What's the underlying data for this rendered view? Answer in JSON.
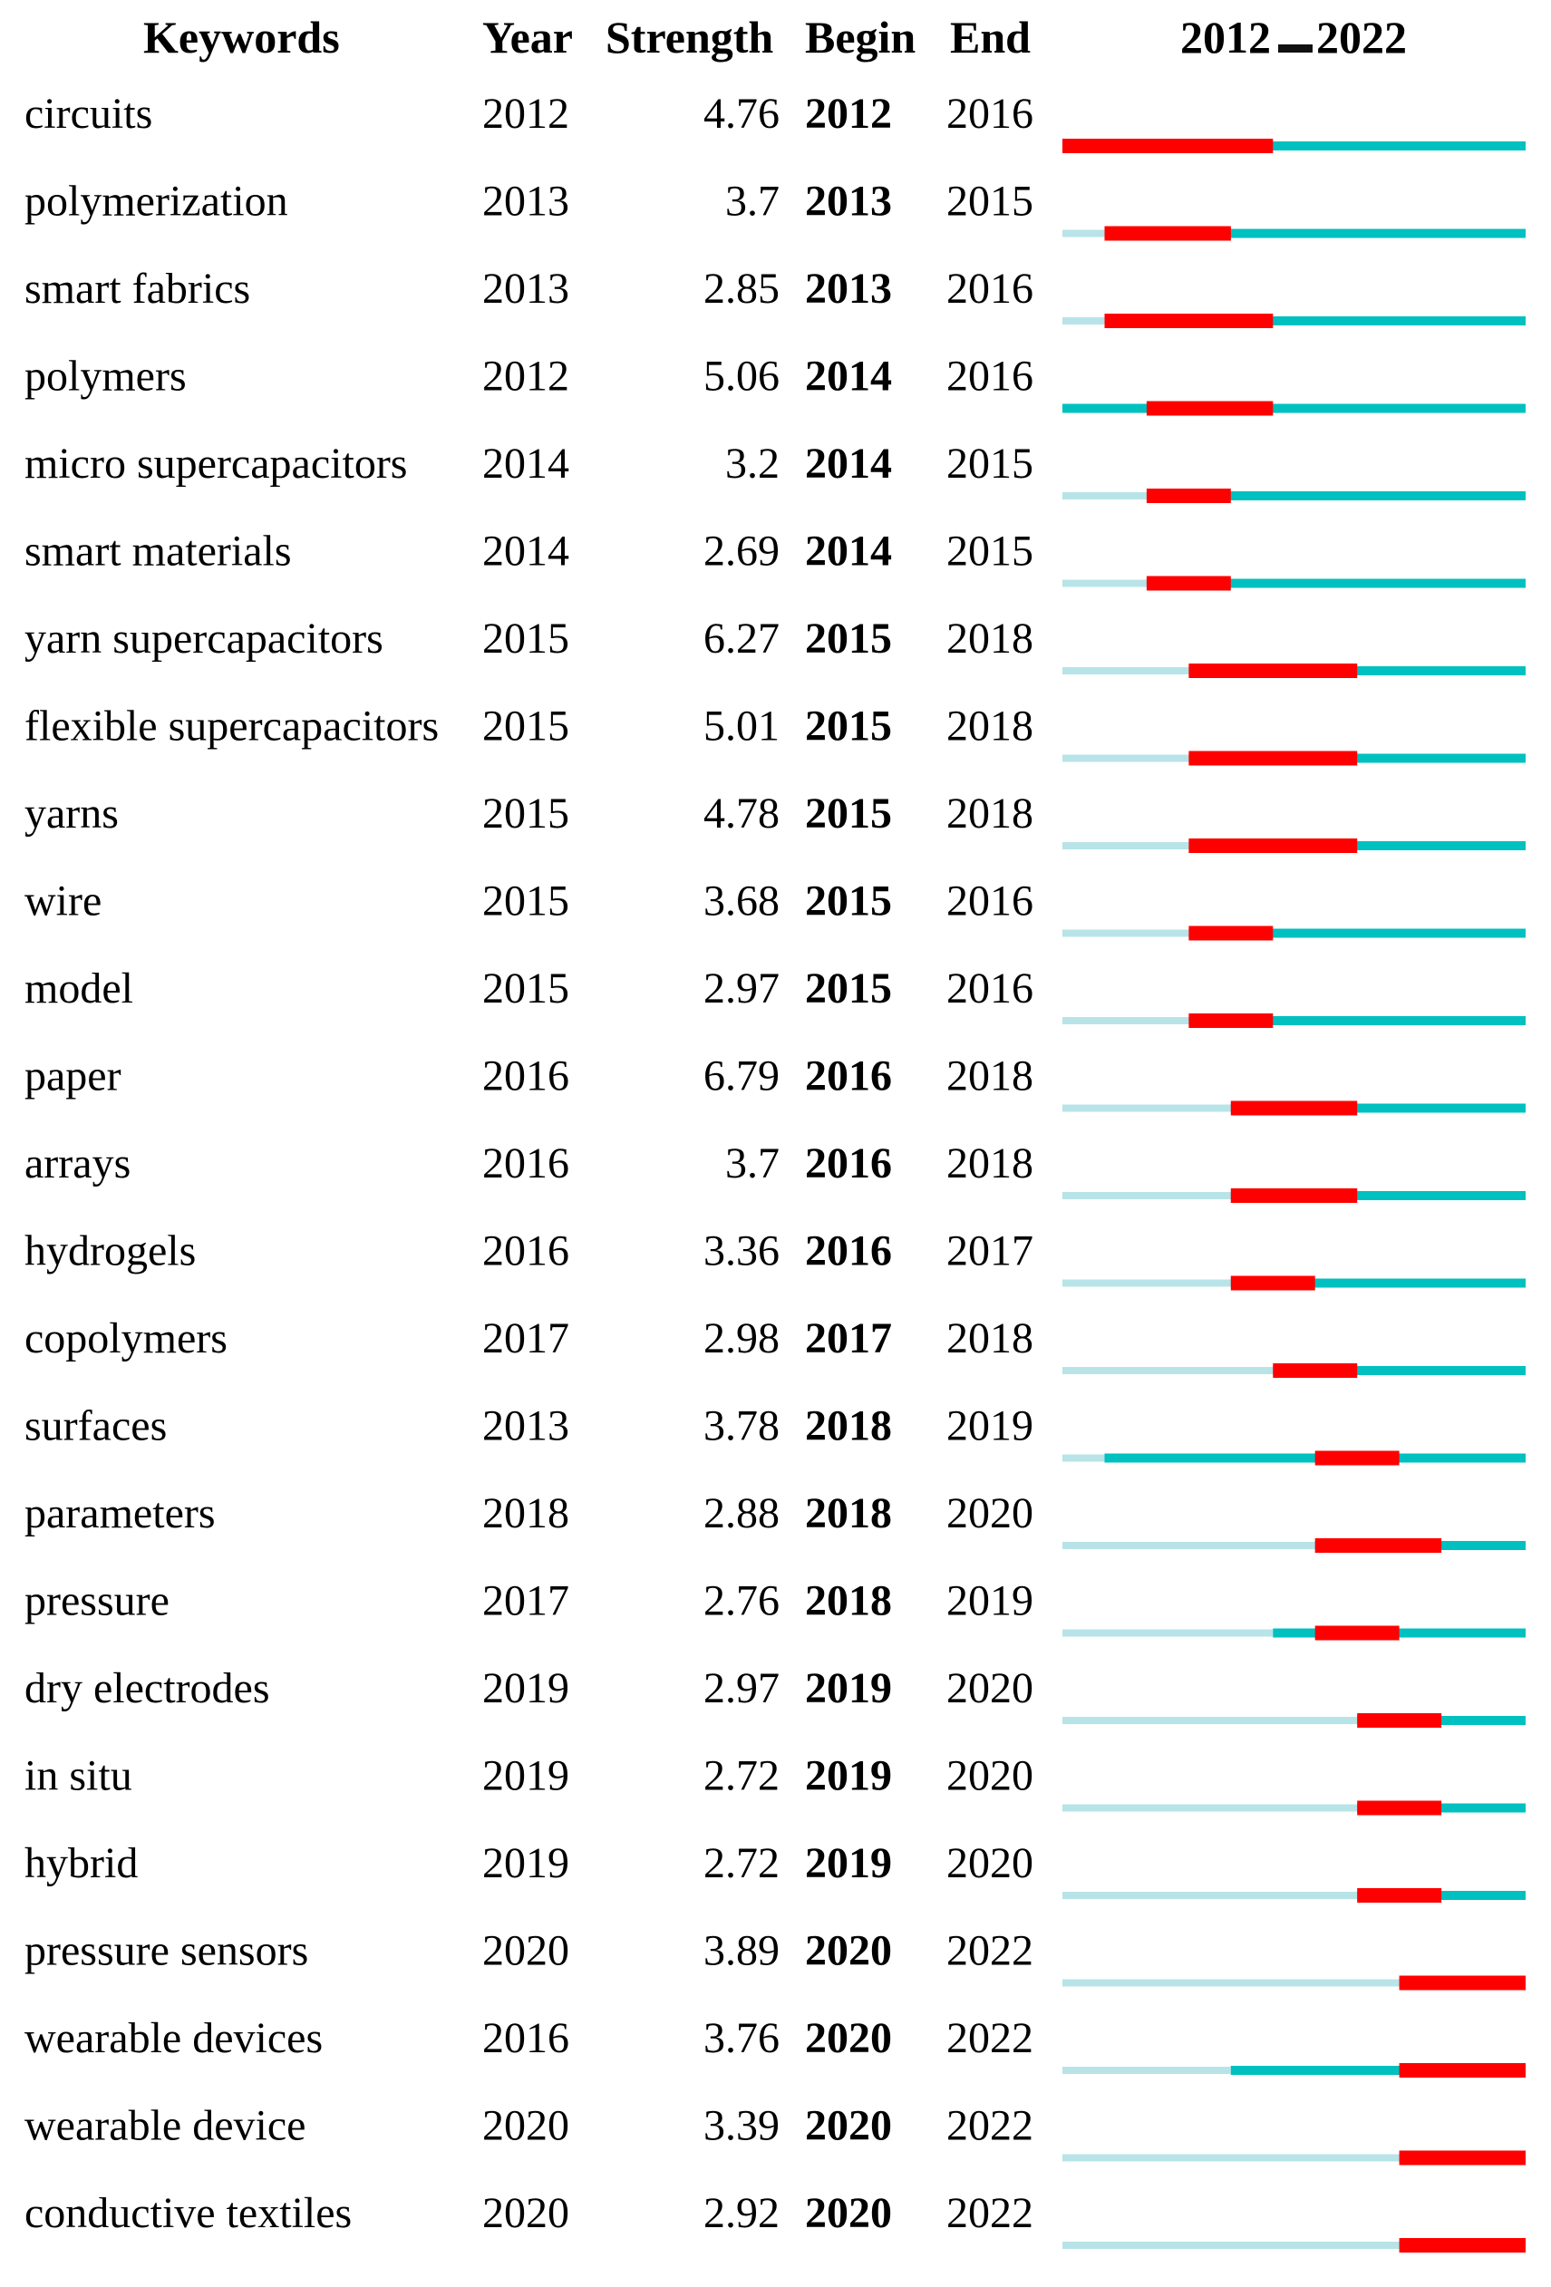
{
  "chart_data": {
    "type": "table",
    "headers": {
      "keywords": "Keywords",
      "year": "Year",
      "strength": "Strength",
      "begin": "Begin",
      "end": "End",
      "range_start": "2012",
      "range_end": "2022"
    },
    "range": [
      2012,
      2022
    ],
    "colors": {
      "burst": "#ff0000",
      "active": "#00c0c0",
      "before": "#b8e4e8",
      "text": "#111111"
    },
    "rows": [
      {
        "keyword": "circuits",
        "year": 2012,
        "strength": "4.76",
        "begin": 2012,
        "end": 2016
      },
      {
        "keyword": "polymerization",
        "year": 2013,
        "strength": "3.7",
        "begin": 2013,
        "end": 2015
      },
      {
        "keyword": "smart fabrics",
        "year": 2013,
        "strength": "2.85",
        "begin": 2013,
        "end": 2016
      },
      {
        "keyword": "polymers",
        "year": 2012,
        "strength": "5.06",
        "begin": 2014,
        "end": 2016
      },
      {
        "keyword": "micro supercapacitors",
        "year": 2014,
        "strength": "3.2",
        "begin": 2014,
        "end": 2015
      },
      {
        "keyword": "smart materials",
        "year": 2014,
        "strength": "2.69",
        "begin": 2014,
        "end": 2015
      },
      {
        "keyword": "yarn supercapacitors",
        "year": 2015,
        "strength": "6.27",
        "begin": 2015,
        "end": 2018
      },
      {
        "keyword": "flexible supercapacitors",
        "year": 2015,
        "strength": "5.01",
        "begin": 2015,
        "end": 2018
      },
      {
        "keyword": "yarns",
        "year": 2015,
        "strength": "4.78",
        "begin": 2015,
        "end": 2018
      },
      {
        "keyword": "wire",
        "year": 2015,
        "strength": "3.68",
        "begin": 2015,
        "end": 2016
      },
      {
        "keyword": "model",
        "year": 2015,
        "strength": "2.97",
        "begin": 2015,
        "end": 2016
      },
      {
        "keyword": "paper",
        "year": 2016,
        "strength": "6.79",
        "begin": 2016,
        "end": 2018
      },
      {
        "keyword": "arrays",
        "year": 2016,
        "strength": "3.7",
        "begin": 2016,
        "end": 2018
      },
      {
        "keyword": "hydrogels",
        "year": 2016,
        "strength": "3.36",
        "begin": 2016,
        "end": 2017
      },
      {
        "keyword": "copolymers",
        "year": 2017,
        "strength": "2.98",
        "begin": 2017,
        "end": 2018
      },
      {
        "keyword": "surfaces",
        "year": 2013,
        "strength": "3.78",
        "begin": 2018,
        "end": 2019
      },
      {
        "keyword": "parameters",
        "year": 2018,
        "strength": "2.88",
        "begin": 2018,
        "end": 2020
      },
      {
        "keyword": "pressure",
        "year": 2017,
        "strength": "2.76",
        "begin": 2018,
        "end": 2019
      },
      {
        "keyword": "dry electrodes",
        "year": 2019,
        "strength": "2.97",
        "begin": 2019,
        "end": 2020
      },
      {
        "keyword": "in situ",
        "year": 2019,
        "strength": "2.72",
        "begin": 2019,
        "end": 2020
      },
      {
        "keyword": "hybrid",
        "year": 2019,
        "strength": "2.72",
        "begin": 2019,
        "end": 2020
      },
      {
        "keyword": "pressure sensors",
        "year": 2020,
        "strength": "3.89",
        "begin": 2020,
        "end": 2022
      },
      {
        "keyword": "wearable devices",
        "year": 2016,
        "strength": "3.76",
        "begin": 2020,
        "end": 2022
      },
      {
        "keyword": "wearable device",
        "year": 2020,
        "strength": "3.39",
        "begin": 2020,
        "end": 2022
      },
      {
        "keyword": "conductive textiles",
        "year": 2020,
        "strength": "2.92",
        "begin": 2020,
        "end": 2022
      }
    ]
  }
}
